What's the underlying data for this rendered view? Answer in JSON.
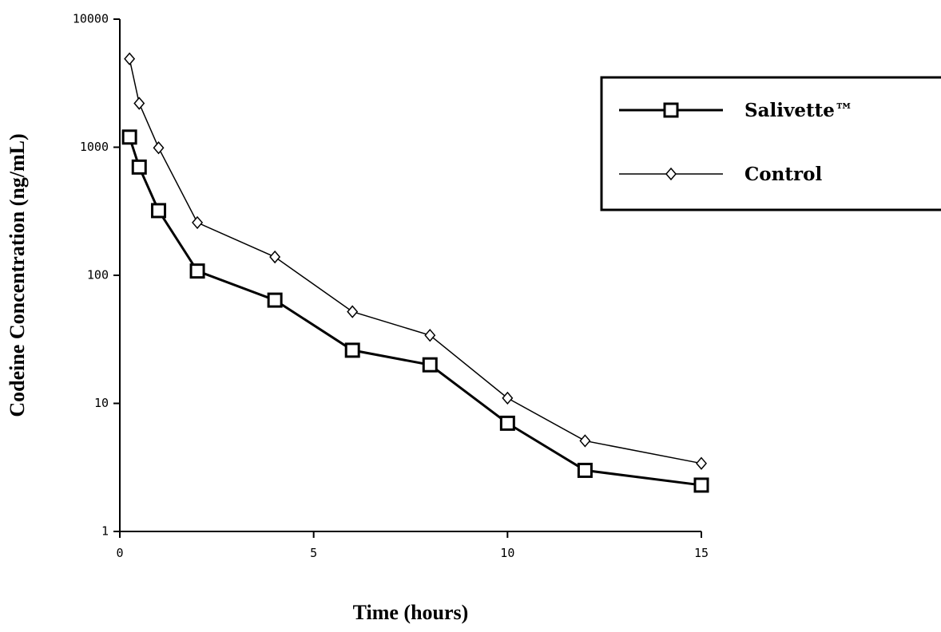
{
  "chart_data": {
    "type": "line",
    "x_label": "Time (hours)",
    "y_label": "Codeine Concentration (ng/mL)",
    "x": [
      0.25,
      0.5,
      1,
      2,
      4,
      6,
      8,
      10,
      12,
      15
    ],
    "series": [
      {
        "name": "Salivette™",
        "color": "#000000",
        "marker": "square",
        "values": [
          1200,
          700,
          320,
          108,
          64,
          26,
          20,
          7,
          3,
          2.3
        ]
      },
      {
        "name": "Control",
        "color": "#000000",
        "marker": "diamond",
        "values": [
          4900,
          2200,
          990,
          258,
          139,
          52,
          34,
          11,
          5.1,
          3.4
        ]
      }
    ],
    "xlim": [
      0,
      15
    ],
    "xticks": [
      0,
      5,
      10,
      15
    ],
    "ylim": [
      1,
      10000
    ],
    "yticks": [
      1,
      10,
      100,
      1000,
      10000
    ],
    "yscale": "log",
    "grid": false,
    "legend": "upper right"
  }
}
